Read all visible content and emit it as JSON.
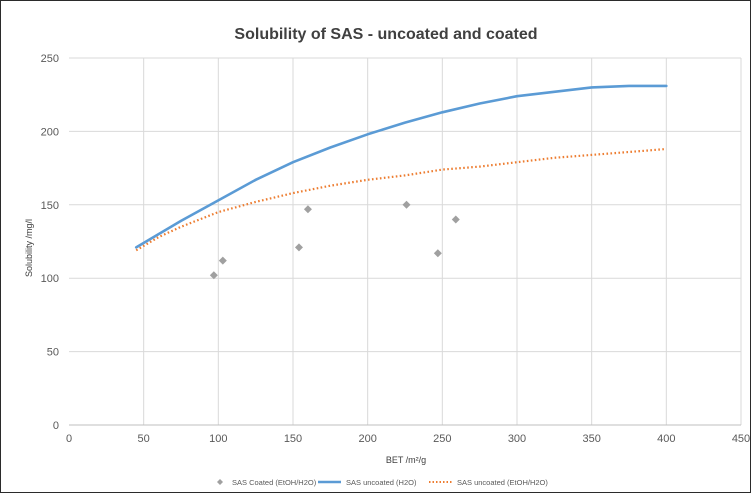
{
  "chart_data": {
    "type": "scatter",
    "title": "Solubility of SAS - uncoated and coated",
    "xlabel": "BET /m²/g",
    "ylabel": "Solubility /mg/l",
    "xlim": [
      0,
      450
    ],
    "ylim": [
      0,
      250
    ],
    "x_ticks": [
      0,
      50,
      100,
      150,
      200,
      250,
      300,
      350,
      400,
      450
    ],
    "y_ticks": [
      0,
      50,
      100,
      150,
      200,
      250
    ],
    "grid": true,
    "legend_position": "bottom",
    "series": [
      {
        "name": "SAS Coated (EtOH/H2O)",
        "kind": "scatter",
        "marker": "diamond",
        "color": "#a0a0a0",
        "points": [
          {
            "x": 97,
            "y": 102
          },
          {
            "x": 103,
            "y": 112
          },
          {
            "x": 154,
            "y": 121
          },
          {
            "x": 160,
            "y": 147
          },
          {
            "x": 226,
            "y": 150
          },
          {
            "x": 247,
            "y": 117
          },
          {
            "x": 259,
            "y": 140
          }
        ]
      },
      {
        "name": "SAS uncoated (H2O)",
        "kind": "line",
        "style": "solid",
        "color": "#5b9bd5",
        "points": [
          {
            "x": 45,
            "y": 121
          },
          {
            "x": 75,
            "y": 139
          },
          {
            "x": 100,
            "y": 153
          },
          {
            "x": 125,
            "y": 167
          },
          {
            "x": 150,
            "y": 179
          },
          {
            "x": 175,
            "y": 189
          },
          {
            "x": 200,
            "y": 198
          },
          {
            "x": 225,
            "y": 206
          },
          {
            "x": 250,
            "y": 213
          },
          {
            "x": 275,
            "y": 219
          },
          {
            "x": 300,
            "y": 224
          },
          {
            "x": 325,
            "y": 227
          },
          {
            "x": 350,
            "y": 230
          },
          {
            "x": 375,
            "y": 231
          },
          {
            "x": 400,
            "y": 231
          }
        ]
      },
      {
        "name": "SAS uncoated (EtOH/H2O)",
        "kind": "line",
        "style": "dotted",
        "color": "#ed7d31",
        "points": [
          {
            "x": 45,
            "y": 119
          },
          {
            "x": 60,
            "y": 128
          },
          {
            "x": 75,
            "y": 135
          },
          {
            "x": 100,
            "y": 145
          },
          {
            "x": 125,
            "y": 152
          },
          {
            "x": 150,
            "y": 158
          },
          {
            "x": 175,
            "y": 163
          },
          {
            "x": 200,
            "y": 167
          },
          {
            "x": 225,
            "y": 170
          },
          {
            "x": 250,
            "y": 174
          },
          {
            "x": 275,
            "y": 176
          },
          {
            "x": 300,
            "y": 179
          },
          {
            "x": 325,
            "y": 182
          },
          {
            "x": 350,
            "y": 184
          },
          {
            "x": 375,
            "y": 186
          },
          {
            "x": 400,
            "y": 188
          }
        ]
      }
    ]
  }
}
